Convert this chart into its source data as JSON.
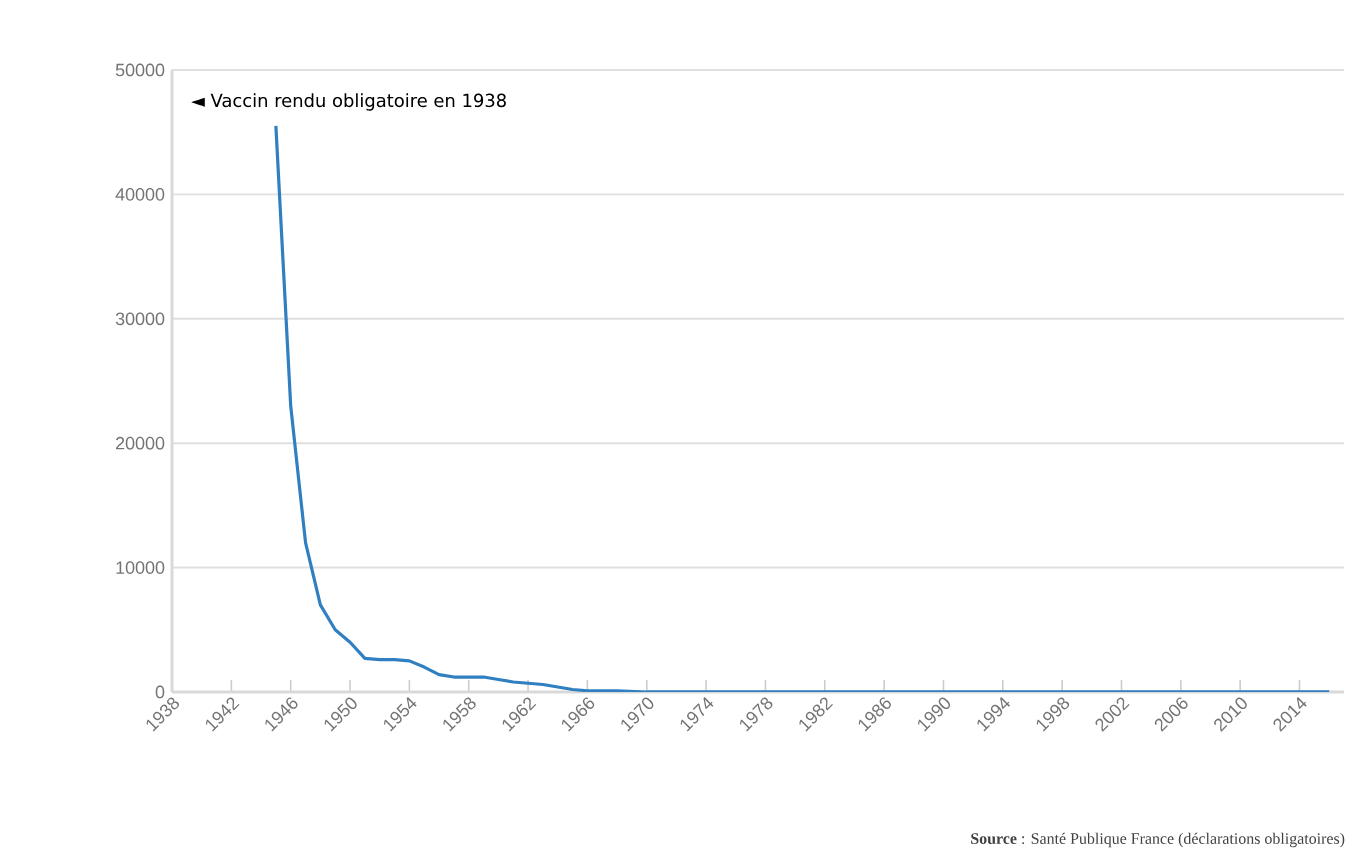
{
  "chart_data": {
    "type": "line",
    "x": [
      1945,
      1946,
      1947,
      1948,
      1949,
      1950,
      1951,
      1952,
      1953,
      1954,
      1955,
      1956,
      1957,
      1958,
      1959,
      1960,
      1961,
      1962,
      1963,
      1964,
      1965,
      1966,
      1968,
      1970,
      1975,
      1980,
      1990,
      2000,
      2010,
      2016
    ],
    "series": [
      {
        "color": "#2f7fc1",
        "values": [
          45500,
          23000,
          12000,
          7000,
          5000,
          4000,
          2700,
          2600,
          2600,
          2500,
          2000,
          1400,
          1200,
          1200,
          1200,
          1000,
          800,
          700,
          600,
          400,
          200,
          100,
          100,
          0,
          0,
          0,
          0,
          0,
          0,
          0
        ]
      }
    ],
    "xlim": [
      1938,
      2017
    ],
    "xticks": [
      1938,
      1942,
      1946,
      1950,
      1954,
      1958,
      1962,
      1966,
      1970,
      1974,
      1978,
      1982,
      1986,
      1990,
      1994,
      1998,
      2002,
      2006,
      2010,
      2014
    ],
    "ylim": [
      0,
      50000
    ],
    "yticks": [
      0,
      10000,
      20000,
      30000,
      40000,
      50000
    ],
    "grid": "y",
    "marker": "none",
    "line_style": "solid",
    "annotations": [
      "◄ Vaccin rendu obligatoire en 1938",
      "**Source** : Santé Publique France (déclarations obligatoires)"
    ]
  }
}
